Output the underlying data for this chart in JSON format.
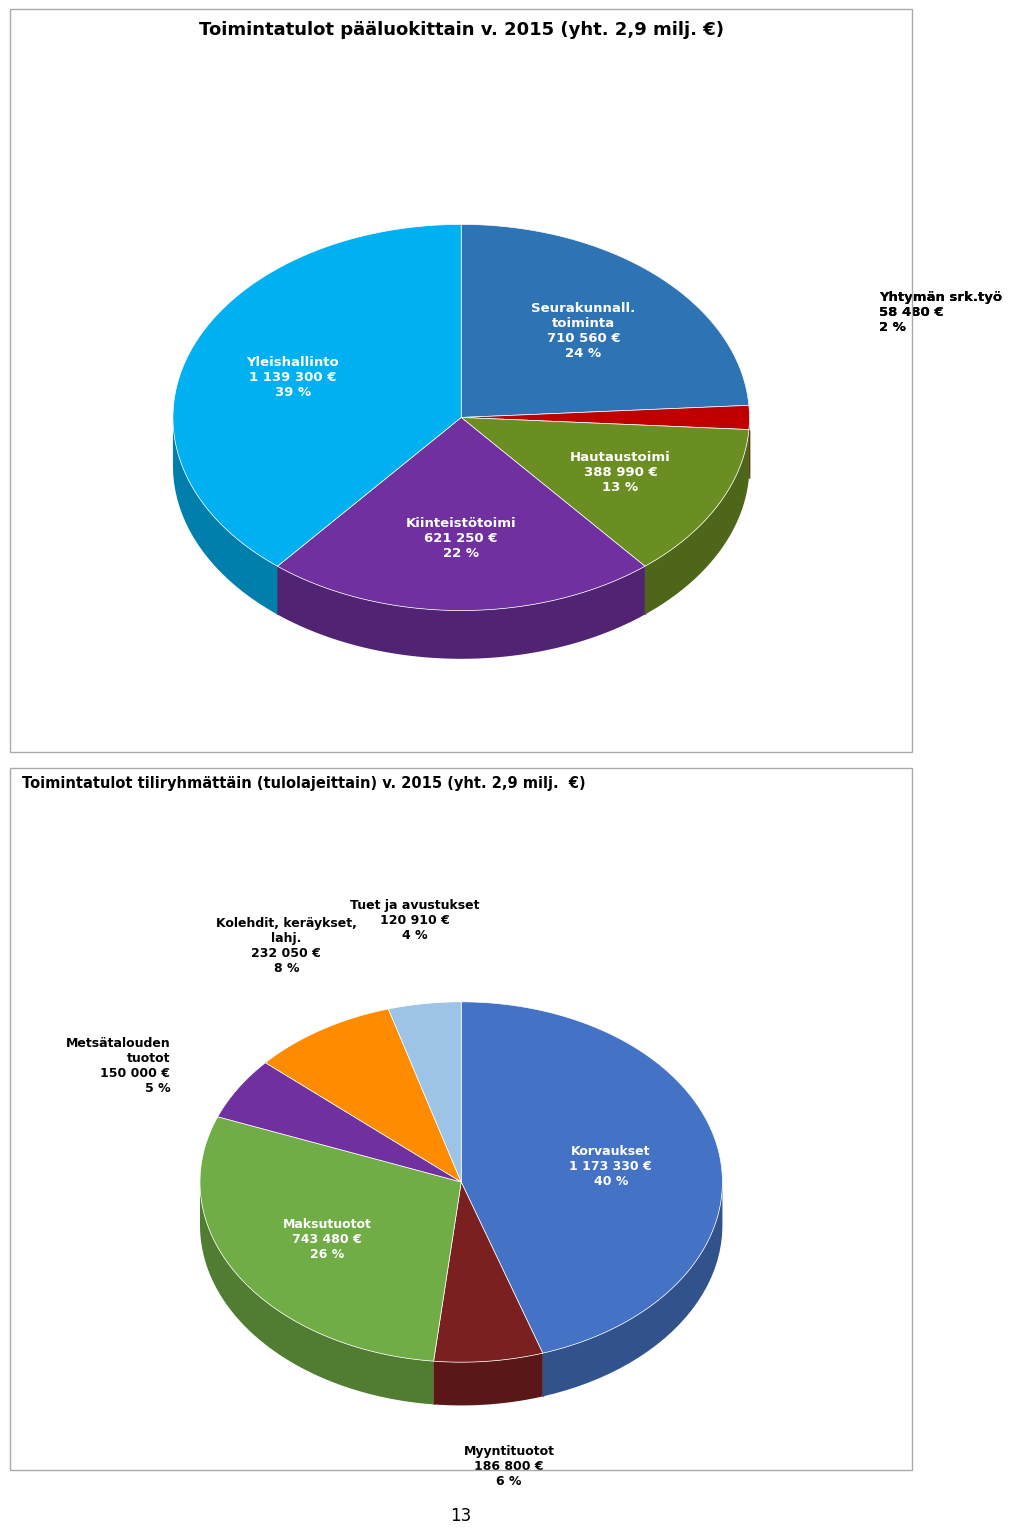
{
  "chart1": {
    "title": "Toimintatulot pääluokittain v. 2015 (yht. 2,9 milj. €)",
    "slices": [
      {
        "label": "Seurakunnall.\ntoiminta\n710 560 €\n24 %",
        "value": 24,
        "color": "#2E74B5",
        "inside": true
      },
      {
        "label": "Yhtymän srk.työ\n58 480 €\n2 %",
        "value": 2,
        "color": "#C00000",
        "inside": false
      },
      {
        "label": "Hautaustoimi\n388 990 €\n13 %",
        "value": 13,
        "color": "#6B8E23",
        "inside": true
      },
      {
        "label": "Kiinteistötoimi\n621 250 €\n22 %",
        "value": 22,
        "color": "#7030A0",
        "inside": true
      },
      {
        "label": "Yleishallinto\n1 139 300 €\n39 %",
        "value": 39,
        "color": "#00B0F0",
        "inside": true
      }
    ]
  },
  "chart2": {
    "title": "Toimintatulot tiliryhmättäin (tulolajeittain) v. 2015 (yht. 2,9 milj.  €)",
    "slices": [
      {
        "label": "Korvaukset\n1 173 330 €\n40 %",
        "value": 40,
        "color": "#4472C4",
        "inside": true
      },
      {
        "label": "Myyntituotot\n186 800 €\n6 %",
        "value": 6,
        "color": "#7B2020",
        "inside": false
      },
      {
        "label": "Maksutuotot\n743 480 €\n26 %",
        "value": 26,
        "color": "#70AD47",
        "inside": true
      },
      {
        "label": "Metsätalouden\ntuotot\n150 000 €\n5 %",
        "value": 5,
        "color": "#7030A0",
        "inside": false
      },
      {
        "label": "Kolehdit, keräykset,\nlahj.\n232 050 €\n8 %",
        "value": 8,
        "color": "#FF8C00",
        "inside": false
      },
      {
        "label": "Tuet ja avustukset\n120 910 €\n4 %",
        "value": 4,
        "color": "#9DC3E6",
        "inside": false
      }
    ]
  },
  "bg_color": "#FFFFFF",
  "text_color_dark": "#000000",
  "text_color_white": "#FFFFFF",
  "page_number": "13"
}
